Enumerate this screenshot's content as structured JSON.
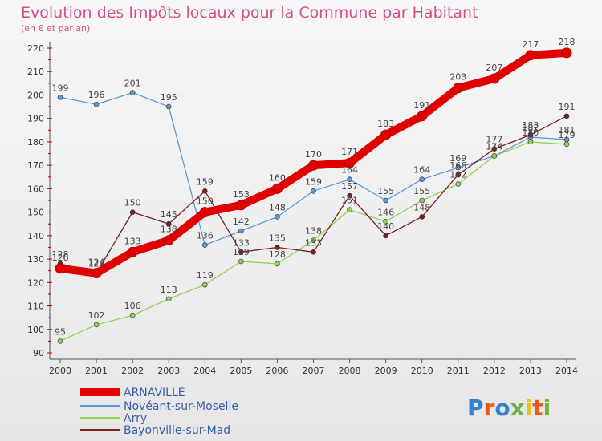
{
  "chart_data": {
    "type": "line",
    "title": "Evolution des Impôts locaux pour la Commune par Habitant",
    "subtitle": "(en € et par an)",
    "x": [
      "2000",
      "2001",
      "2002",
      "2003",
      "2004",
      "2005",
      "2006",
      "2007",
      "2008",
      "2009",
      "2010",
      "2011",
      "2012",
      "2013",
      "2014"
    ],
    "ylim": [
      90,
      220
    ],
    "yticks": [
      90,
      100,
      110,
      120,
      130,
      140,
      150,
      160,
      170,
      180,
      190,
      200,
      210,
      220
    ],
    "grid": false,
    "legend_position": "bottom-left",
    "series": [
      {
        "name": "ARNAVILLE",
        "color": "#e00000",
        "values": [
          126,
          124,
          133,
          138,
          150,
          153,
          160,
          170,
          171,
          183,
          191,
          203,
          207,
          217,
          218
        ]
      },
      {
        "name": "Novéant-sur-Moselle",
        "color": "#5b9bd5",
        "values": [
          199,
          196,
          201,
          195,
          136,
          142,
          148,
          159,
          164,
          155,
          164,
          169,
          174,
          182,
          181
        ]
      },
      {
        "name": "Arry",
        "color": "#92d050",
        "values": [
          95,
          102,
          106,
          113,
          119,
          129,
          128,
          138,
          151,
          146,
          155,
          162,
          174,
          180,
          179
        ]
      },
      {
        "name": "Bayonville-sur-Mad",
        "color": "#7a2020",
        "values": [
          128,
          124,
          150,
          145,
          159,
          133,
          135,
          133,
          157,
          140,
          148,
          166,
          177,
          183,
          191
        ]
      }
    ]
  },
  "logo": {
    "text": "Proxiti",
    "colors": [
      "#3a7fd0",
      "#e85c1a",
      "#3a7fd0",
      "#6cb33f",
      "#e8c21a",
      "#e85c1a",
      "#6cb33f"
    ]
  }
}
